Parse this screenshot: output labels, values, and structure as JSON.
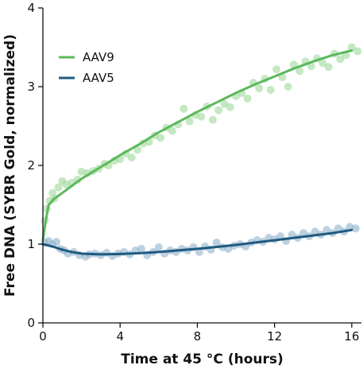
{
  "chart_data": {
    "type": "scatter",
    "xlabel": "Time at 45 °C (hours)",
    "ylabel": "Free DNA (SYBR Gold, normalized)",
    "xlim": [
      0,
      16.5
    ],
    "ylim": [
      0,
      4
    ],
    "x_ticks": [
      0,
      4,
      8,
      12,
      16
    ],
    "y_ticks": [
      0,
      1,
      2,
      3,
      4
    ],
    "grid": false,
    "legend_position": "top-left",
    "series": [
      {
        "name": "AAV9",
        "color": "#5cb85c",
        "point_color": "#9fd89a",
        "fit": [
          [
            0,
            1.05
          ],
          [
            0.15,
            1.3
          ],
          [
            0.3,
            1.5
          ],
          [
            0.6,
            1.58
          ],
          [
            1,
            1.65
          ],
          [
            2,
            1.83
          ],
          [
            3,
            1.98
          ],
          [
            4,
            2.13
          ],
          [
            5,
            2.27
          ],
          [
            6,
            2.42
          ],
          [
            7,
            2.55
          ],
          [
            8,
            2.68
          ],
          [
            9,
            2.8
          ],
          [
            10,
            2.92
          ],
          [
            11,
            3.03
          ],
          [
            12,
            3.13
          ],
          [
            13,
            3.23
          ],
          [
            14,
            3.32
          ],
          [
            15,
            3.4
          ],
          [
            16,
            3.46
          ]
        ],
        "points": [
          [
            0.1,
            1.3
          ],
          [
            0.2,
            1.45
          ],
          [
            0.35,
            1.55
          ],
          [
            0.5,
            1.65
          ],
          [
            0.6,
            1.58
          ],
          [
            0.8,
            1.72
          ],
          [
            1,
            1.8
          ],
          [
            1.2,
            1.76
          ],
          [
            1.5,
            1.78
          ],
          [
            1.8,
            1.82
          ],
          [
            2,
            1.92
          ],
          [
            2.3,
            1.9
          ],
          [
            2.6,
            1.93
          ],
          [
            2.9,
            1.96
          ],
          [
            3.2,
            2.02
          ],
          [
            3.4,
            2.0
          ],
          [
            3.7,
            2.06
          ],
          [
            4,
            2.08
          ],
          [
            4.3,
            2.15
          ],
          [
            4.6,
            2.1
          ],
          [
            4.9,
            2.2
          ],
          [
            5.2,
            2.28
          ],
          [
            5.5,
            2.3
          ],
          [
            5.8,
            2.38
          ],
          [
            6.1,
            2.35
          ],
          [
            6.4,
            2.48
          ],
          [
            6.7,
            2.44
          ],
          [
            7,
            2.52
          ],
          [
            7.3,
            2.72
          ],
          [
            7.6,
            2.56
          ],
          [
            7.9,
            2.64
          ],
          [
            8.2,
            2.62
          ],
          [
            8.5,
            2.75
          ],
          [
            8.8,
            2.58
          ],
          [
            9.1,
            2.7
          ],
          [
            9.4,
            2.78
          ],
          [
            9.7,
            2.74
          ],
          [
            10,
            2.88
          ],
          [
            10.3,
            2.92
          ],
          [
            10.6,
            2.85
          ],
          [
            10.9,
            3.05
          ],
          [
            11.2,
            2.98
          ],
          [
            11.5,
            3.1
          ],
          [
            11.8,
            2.96
          ],
          [
            12.1,
            3.22
          ],
          [
            12.4,
            3.12
          ],
          [
            12.7,
            3.0
          ],
          [
            13,
            3.28
          ],
          [
            13.3,
            3.2
          ],
          [
            13.6,
            3.32
          ],
          [
            13.9,
            3.26
          ],
          [
            14.2,
            3.36
          ],
          [
            14.5,
            3.3
          ],
          [
            14.8,
            3.25
          ],
          [
            15.1,
            3.42
          ],
          [
            15.4,
            3.35
          ],
          [
            15.7,
            3.4
          ],
          [
            16,
            3.5
          ],
          [
            16.3,
            3.45
          ]
        ]
      },
      {
        "name": "AAV5",
        "color": "#1f5a80",
        "point_color": "#8fb2cc",
        "fit": [
          [
            0,
            1.0
          ],
          [
            0.5,
            0.97
          ],
          [
            1,
            0.93
          ],
          [
            1.5,
            0.9
          ],
          [
            2,
            0.88
          ],
          [
            3,
            0.87
          ],
          [
            4,
            0.875
          ],
          [
            5,
            0.885
          ],
          [
            6,
            0.9
          ],
          [
            7,
            0.92
          ],
          [
            8,
            0.94
          ],
          [
            9,
            0.965
          ],
          [
            10,
            0.99
          ],
          [
            11,
            1.02
          ],
          [
            12,
            1.05
          ],
          [
            13,
            1.08
          ],
          [
            14,
            1.11
          ],
          [
            15,
            1.14
          ],
          [
            16,
            1.18
          ]
        ],
        "points": [
          [
            0.1,
            1.02
          ],
          [
            0.3,
            1.04
          ],
          [
            0.5,
            1.0
          ],
          [
            0.7,
            1.03
          ],
          [
            0.9,
            0.94
          ],
          [
            1.1,
            0.92
          ],
          [
            1.3,
            0.88
          ],
          [
            1.6,
            0.9
          ],
          [
            1.9,
            0.86
          ],
          [
            2.2,
            0.84
          ],
          [
            2.4,
            0.87
          ],
          [
            2.7,
            0.88
          ],
          [
            3,
            0.86
          ],
          [
            3.3,
            0.89
          ],
          [
            3.6,
            0.85
          ],
          [
            3.9,
            0.88
          ],
          [
            4.2,
            0.9
          ],
          [
            4.5,
            0.87
          ],
          [
            4.8,
            0.92
          ],
          [
            5.1,
            0.94
          ],
          [
            5.4,
            0.86
          ],
          [
            5.7,
            0.9
          ],
          [
            6,
            0.96
          ],
          [
            6.3,
            0.88
          ],
          [
            6.6,
            0.92
          ],
          [
            6.9,
            0.9
          ],
          [
            7.2,
            0.94
          ],
          [
            7.5,
            0.92
          ],
          [
            7.8,
            0.96
          ],
          [
            8.1,
            0.9
          ],
          [
            8.4,
            0.97
          ],
          [
            8.7,
            0.93
          ],
          [
            9,
            1.02
          ],
          [
            9.3,
            0.96
          ],
          [
            9.6,
            0.94
          ],
          [
            9.9,
            0.98
          ],
          [
            10.2,
            1.0
          ],
          [
            10.5,
            0.97
          ],
          [
            10.8,
            1.02
          ],
          [
            11.1,
            1.05
          ],
          [
            11.4,
            1.03
          ],
          [
            11.7,
            1.08
          ],
          [
            12,
            1.06
          ],
          [
            12.3,
            1.1
          ],
          [
            12.6,
            1.04
          ],
          [
            12.9,
            1.12
          ],
          [
            13.2,
            1.08
          ],
          [
            13.5,
            1.14
          ],
          [
            13.8,
            1.1
          ],
          [
            14.1,
            1.16
          ],
          [
            14.4,
            1.12
          ],
          [
            14.7,
            1.18
          ],
          [
            15,
            1.14
          ],
          [
            15.3,
            1.2
          ],
          [
            15.6,
            1.16
          ],
          [
            15.9,
            1.22
          ],
          [
            16.2,
            1.2
          ]
        ]
      }
    ]
  }
}
